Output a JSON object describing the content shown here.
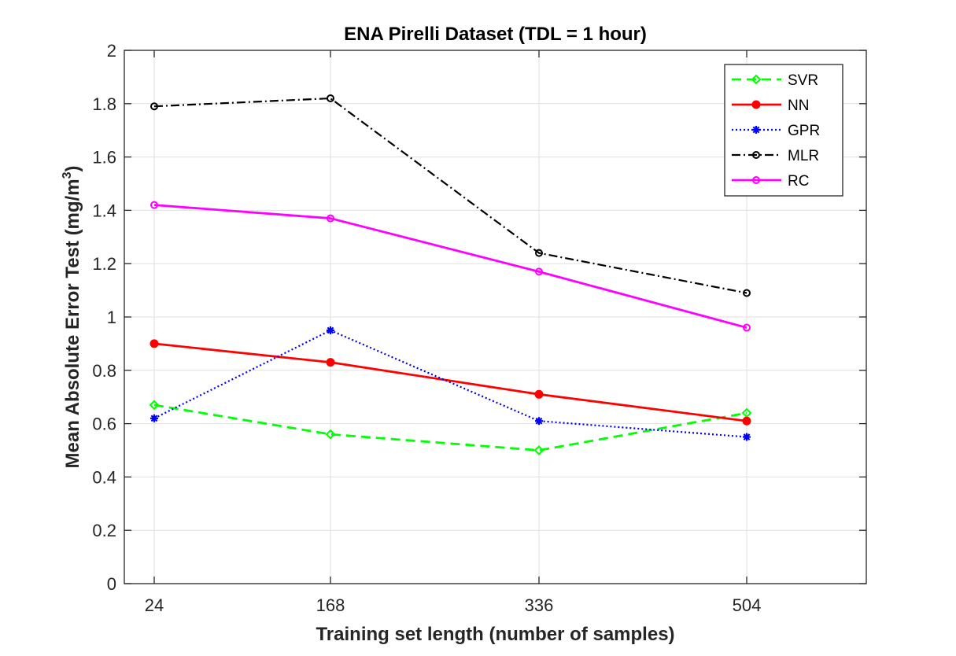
{
  "chart_data": {
    "type": "line",
    "title": "ENA Pirelli Dataset (TDL = 1 hour)",
    "xlabel": "Training set length (number of samples)",
    "ylabel_main": "Mean Absolute Error Test (mg/m",
    "ylabel_sup": "3",
    "ylabel_close": ")",
    "categories": [
      "24",
      "168",
      "336",
      "504"
    ],
    "ylim": [
      0,
      2
    ],
    "yticks": [
      "0",
      "0.2",
      "0.4",
      "0.6",
      "0.8",
      "1",
      "1.2",
      "1.4",
      "1.6",
      "1.8",
      "2"
    ],
    "grid": true,
    "legend_position": "top-right",
    "series": [
      {
        "name": "SVR",
        "values": [
          0.67,
          0.56,
          0.5,
          0.64
        ],
        "color": "#00ff00",
        "dash": "dashed",
        "marker": "diamond"
      },
      {
        "name": "NN",
        "values": [
          0.9,
          0.83,
          0.71,
          0.61
        ],
        "color": "#ff0000",
        "dash": "solid",
        "marker": "dot"
      },
      {
        "name": "GPR",
        "values": [
          0.62,
          0.95,
          0.61,
          0.55
        ],
        "color": "#0000ff",
        "dash": "dotted",
        "marker": "star"
      },
      {
        "name": "MLR",
        "values": [
          1.79,
          1.82,
          1.24,
          1.09
        ],
        "color": "#000000",
        "dash": "dashdot",
        "marker": "circle"
      },
      {
        "name": "RC",
        "values": [
          1.42,
          1.37,
          1.17,
          0.96
        ],
        "color": "#ff00ff",
        "dash": "solid",
        "marker": "circle"
      }
    ]
  }
}
